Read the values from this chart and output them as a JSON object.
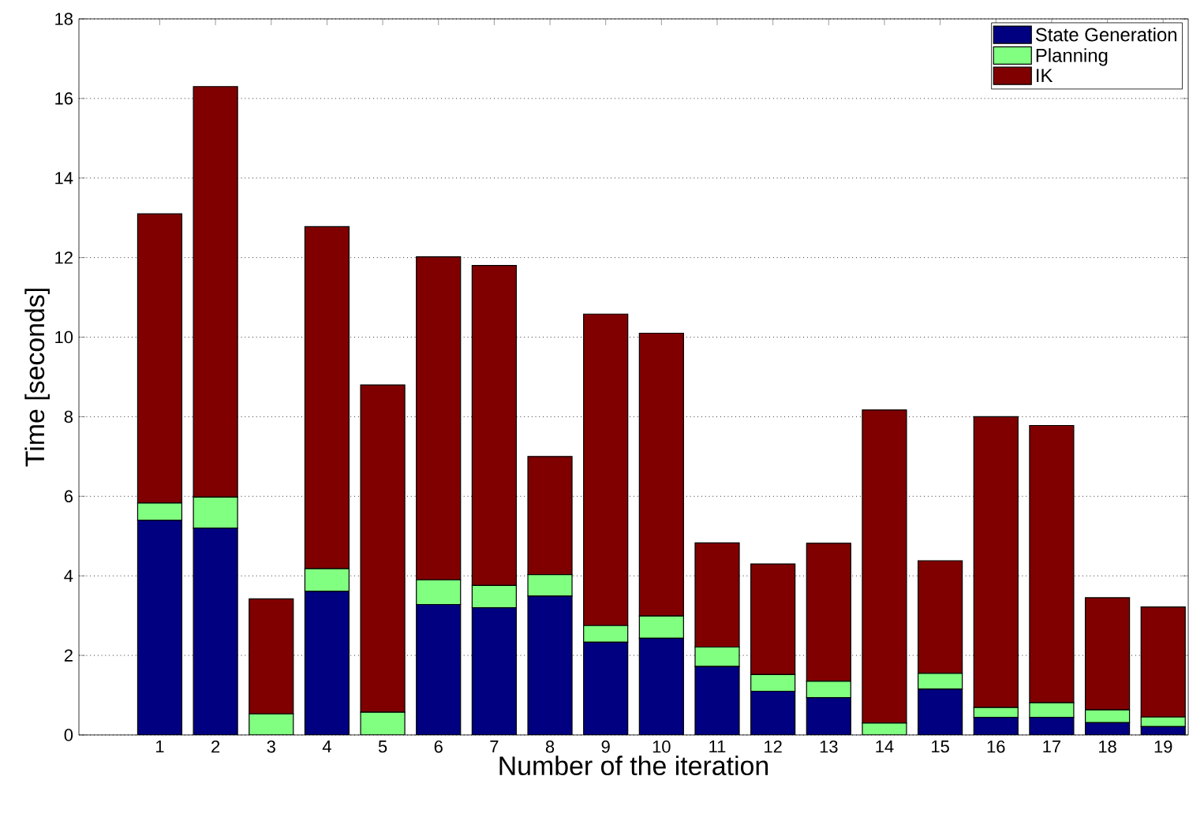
{
  "chart_data": {
    "type": "bar",
    "stacked": true,
    "xlabel": "Number of the iteration",
    "ylabel": "Time [seconds]",
    "categories": [
      "1",
      "2",
      "3",
      "4",
      "5",
      "6",
      "7",
      "8",
      "9",
      "10",
      "11",
      "12",
      "13",
      "14",
      "15",
      "16",
      "17",
      "18",
      "19"
    ],
    "series": [
      {
        "name": "State Generation",
        "color": "#000080",
        "values": [
          5.4,
          5.2,
          0,
          3.61,
          0,
          3.28,
          3.2,
          3.49,
          2.33,
          2.43,
          1.72,
          1.1,
          0.94,
          0,
          1.15,
          0.44,
          0.44,
          0.31,
          0.21
        ]
      },
      {
        "name": "Planning",
        "color": "#80ff80",
        "values": [
          0.43,
          0.78,
          0.53,
          0.57,
          0.57,
          0.62,
          0.56,
          0.54,
          0.42,
          0.56,
          0.49,
          0.42,
          0.41,
          0.3,
          0.4,
          0.25,
          0.37,
          0.32,
          0.24
        ]
      },
      {
        "name": "IK",
        "color": "#800000",
        "values": [
          7.27,
          10.32,
          2.89,
          8.6,
          8.23,
          8.12,
          8.04,
          2.97,
          7.83,
          7.11,
          2.62,
          2.78,
          3.47,
          7.87,
          2.83,
          7.31,
          6.97,
          2.82,
          2.77
        ]
      }
    ],
    "ylim": [
      0,
      18
    ],
    "yticks": [
      0,
      2,
      4,
      6,
      8,
      10,
      12,
      14,
      16,
      18
    ],
    "grid": "y",
    "legend": "top right"
  }
}
